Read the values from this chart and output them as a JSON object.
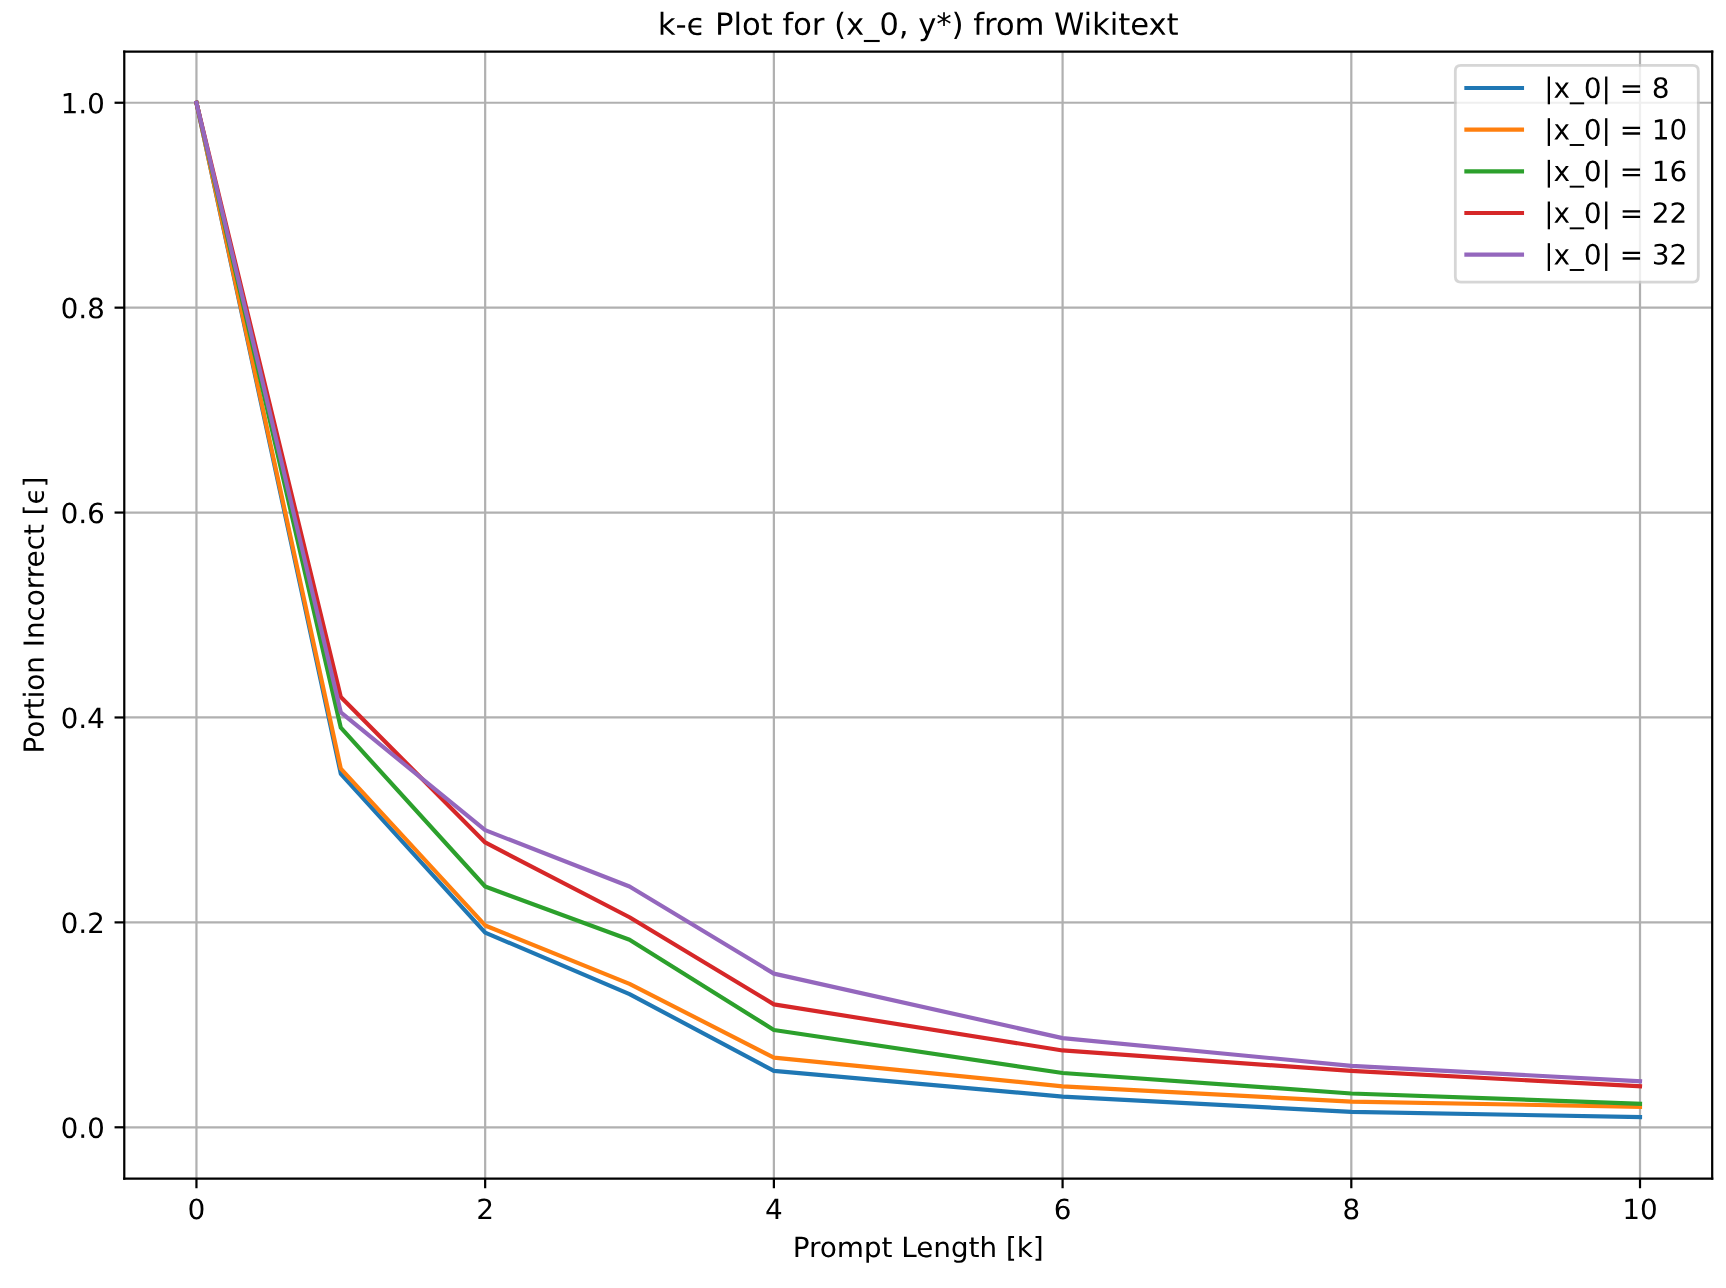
{
  "chart_data": {
    "type": "line",
    "title": "k-ϵ Plot for (x_0, y*) from Wikitext",
    "xlabel": "Prompt Length [k]",
    "ylabel": "Portion Incorrect [ϵ]",
    "x": [
      0,
      1,
      2,
      3,
      4,
      6,
      8,
      10
    ],
    "series": [
      {
        "name": "|x_0| = 8",
        "color": "#1f77b4",
        "values": [
          1.0,
          0.345,
          0.19,
          0.13,
          0.055,
          0.03,
          0.015,
          0.01
        ]
      },
      {
        "name": "|x_0| = 10",
        "color": "#ff7f0e",
        "values": [
          1.0,
          0.35,
          0.197,
          0.14,
          0.068,
          0.04,
          0.025,
          0.02
        ]
      },
      {
        "name": "|x_0| = 16",
        "color": "#2ca02c",
        "values": [
          1.0,
          0.39,
          0.235,
          0.183,
          0.095,
          0.053,
          0.033,
          0.023
        ]
      },
      {
        "name": "|x_0| = 22",
        "color": "#d62728",
        "values": [
          1.0,
          0.42,
          0.278,
          0.205,
          0.12,
          0.075,
          0.055,
          0.04
        ]
      },
      {
        "name": "|x_0| = 32",
        "color": "#9467bd",
        "values": [
          1.0,
          0.405,
          0.29,
          0.235,
          0.15,
          0.087,
          0.06,
          0.045
        ]
      }
    ],
    "xlim": [
      -0.5,
      10.5
    ],
    "ylim": [
      -0.05,
      1.05
    ],
    "xticks": [
      0,
      2,
      4,
      6,
      8,
      10
    ],
    "yticks": [
      {
        "value": 0,
        "label": "0.0"
      },
      {
        "value": 0.2,
        "label": "0.2"
      },
      {
        "value": 0.4,
        "label": "0.4"
      },
      {
        "value": 0.6,
        "label": "0.6"
      },
      {
        "value": 0.8,
        "label": "0.8"
      },
      {
        "value": 1,
        "label": "1.0"
      }
    ],
    "grid": true,
    "legend": "upper right",
    "marker": "none",
    "line_style": "solid"
  }
}
